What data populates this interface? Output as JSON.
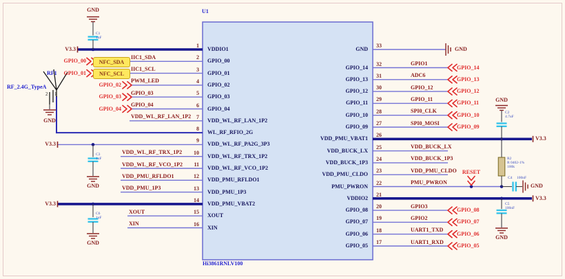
{
  "chip": {
    "refdes": "U1",
    "part": "Hi3861RNLV100",
    "left_pins": [
      {
        "num": "1",
        "name": "VDDIO1",
        "net": "",
        "port": "",
        "tag": ""
      },
      {
        "num": "2",
        "name": "GPIO_00",
        "net": "IIC1_SDA",
        "port": "GPIO_00",
        "tag": "NFC_SDA"
      },
      {
        "num": "3",
        "name": "GPIO_01",
        "net": "IIC1_SCL",
        "port": "GPIO_01",
        "tag": "NFC_SCL"
      },
      {
        "num": "4",
        "name": "GPIO_02",
        "net": "PWM_LED",
        "port": "GPIO_02",
        "tag": ""
      },
      {
        "num": "5",
        "name": "GPIO_03",
        "net": "GPIO_03",
        "port": "GPIO_03",
        "tag": ""
      },
      {
        "num": "6",
        "name": "GPIO_04",
        "net": "GPIO_04",
        "port": "GPIO_04",
        "tag": ""
      },
      {
        "num": "7",
        "name": "VDD_WL_RF_LAN_1P2",
        "net": "VDD_WL_RF_LAN_1P2",
        "port": "",
        "tag": ""
      },
      {
        "num": "8",
        "name": "WL_RF_RFIO_2G",
        "net": "",
        "port": "",
        "tag": ""
      },
      {
        "num": "9",
        "name": "VDD_WL_RF_PA2G_3P3",
        "net": "",
        "port": "",
        "tag": ""
      },
      {
        "num": "10",
        "name": "VDD_WL_RF_TRX_1P2",
        "net": "VDD_WL_RF_TRX_1P2",
        "port": "",
        "tag": ""
      },
      {
        "num": "11",
        "name": "VDD_WL_RF_VCO_1P2",
        "net": "VDD_WL_RF_VCO_1P2",
        "port": "",
        "tag": ""
      },
      {
        "num": "12",
        "name": "VDD_PMU_RFLDO1",
        "net": "VDD_PMU_RFLDO1",
        "port": "",
        "tag": ""
      },
      {
        "num": "13",
        "name": "VDD_PMU_1P3",
        "net": "VDD_PMU_1P3",
        "port": "",
        "tag": ""
      },
      {
        "num": "14",
        "name": "VDD_PMU_VBAT2",
        "net": "",
        "port": "",
        "tag": ""
      },
      {
        "num": "15",
        "name": "XOUT",
        "net": "XOUT",
        "port": "",
        "tag": ""
      },
      {
        "num": "16",
        "name": "XIN",
        "net": "XIN",
        "port": "",
        "tag": ""
      }
    ],
    "right_pins": [
      {
        "num": "33",
        "name": "GND",
        "net": "",
        "port": ""
      },
      {
        "num": "32",
        "name": "GPIO_14",
        "net": "GPIO1",
        "port": "GPIO_14"
      },
      {
        "num": "31",
        "name": "GPIO_13",
        "net": "ADC6",
        "port": "GPIO_13"
      },
      {
        "num": "30",
        "name": "GPIO_12",
        "net": "GPIO_12",
        "port": "GPIO_12"
      },
      {
        "num": "29",
        "name": "GPIO_11",
        "net": "GPIO_11",
        "port": "GPIO_11"
      },
      {
        "num": "28",
        "name": "GPIO_10",
        "net": "SPI0_CLK",
        "port": "GPIO_10"
      },
      {
        "num": "27",
        "name": "GPIO_09",
        "net": "SPI0_MOSI",
        "port": "GPIO_09"
      },
      {
        "num": "26",
        "name": "VDD_PMU_VBAT1",
        "net": "",
        "port": ""
      },
      {
        "num": "25",
        "name": "VDD_BUCK_LX",
        "net": "VDD_BUCK_LX",
        "port": ""
      },
      {
        "num": "24",
        "name": "VDD_BUCK_1P3",
        "net": "VDD_BUCK_1P3",
        "port": ""
      },
      {
        "num": "23",
        "name": "VDD_PMU_CLDO",
        "net": "VDD_PMU_CLDO",
        "port": ""
      },
      {
        "num": "22",
        "name": "PMU_PWRON",
        "net": "PMU_PWRON",
        "port": ""
      },
      {
        "num": "21",
        "name": "VDDIO2",
        "net": "",
        "port": ""
      },
      {
        "num": "20",
        "name": "GPIO_08",
        "net": "GPIO3",
        "port": "GPIO_08"
      },
      {
        "num": "19",
        "name": "GPIO_07",
        "net": "GPIO2",
        "port": "GPIO_07"
      },
      {
        "num": "18",
        "name": "GPIO_06",
        "net": "UART1_TXD",
        "port": "GPIO_06"
      },
      {
        "num": "17",
        "name": "GPIO_05",
        "net": "UART1_RXD",
        "port": "GPIO_05"
      }
    ]
  },
  "power": {
    "v33": "V3.3",
    "gnd": "GND"
  },
  "ports": {
    "reset": "RESET"
  },
  "antenna": {
    "refdes": "RF1",
    "type_label": "RF_2.4G_TypeA",
    "pin1": "1",
    "pin2": "2"
  },
  "components": {
    "c1": {
      "refdes": "C1",
      "value": "1uF"
    },
    "c2": {
      "refdes": "C2",
      "value": "4.7uF"
    },
    "c3": {
      "refdes": "C3",
      "value": "1uF"
    },
    "c4": {
      "refdes": "C4",
      "value": "100nF"
    },
    "c5": {
      "refdes": "C5",
      "value": "100nF"
    },
    "c6": {
      "refdes": "C6",
      "value": "1uF"
    },
    "r2": {
      "refdes": "R2",
      "spec": "R 0402-1%",
      "value": "100k"
    }
  },
  "colors": {
    "background": "#fdf8ef",
    "chip_fill": "#d5e2f4",
    "chip_border": "#6a6ad0",
    "wire": "#7473d6",
    "power_bus": "#17178e",
    "symbol_red": "#8b2525",
    "port_red": "#e02e2e",
    "net_label": "#8b1a1a",
    "tag_fill": "#ffe85e",
    "capacitor": "#35c3ea",
    "blue_text": "#2323cf"
  }
}
